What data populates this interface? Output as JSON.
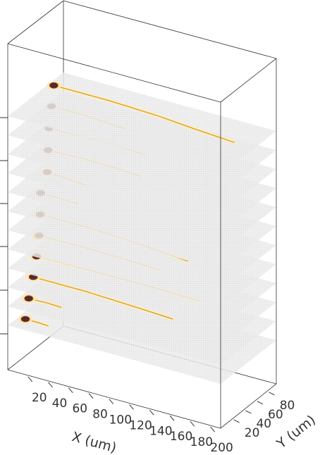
{
  "chart_data": {
    "type": "scatter",
    "projection": "3d",
    "title": "",
    "xlabel": "X (um)",
    "ylabel": "Y (um)",
    "zlabel": "",
    "x_ticks": [
      "20",
      "40",
      "60",
      "80",
      "100",
      "120",
      "140",
      "160",
      "180",
      "200"
    ],
    "y_ticks": [
      "20",
      "40",
      "60",
      "80"
    ],
    "xlim": [
      0,
      210
    ],
    "ylim": [
      0,
      95
    ],
    "layers": 12,
    "colormap": "hot",
    "traces": [
      {
        "layer": 1,
        "blob": [
          5,
          70
        ],
        "tail": [
          [
            5,
            70
          ],
          [
            60,
            70
          ],
          [
            110,
            67
          ],
          [
            150,
            62
          ],
          [
            190,
            58
          ]
        ]
      },
      {
        "layer": 2,
        "blob": [
          5,
          66
        ],
        "tail": [
          [
            5,
            66
          ],
          [
            40,
            66
          ],
          [
            60,
            64
          ],
          [
            80,
            62
          ]
        ]
      },
      {
        "layer": 3,
        "blob": [
          6,
          60
        ],
        "tail": [
          [
            6,
            60
          ],
          [
            40,
            62
          ],
          [
            70,
            62
          ],
          [
            100,
            60
          ]
        ]
      },
      {
        "layer": 4,
        "blob": [
          8,
          55
        ],
        "tail": [
          [
            8,
            55
          ],
          [
            40,
            57
          ],
          [
            70,
            56
          ],
          [
            100,
            54
          ]
        ]
      },
      {
        "layer": 5,
        "blob": [
          10,
          50
        ],
        "tail": [
          [
            10,
            50
          ],
          [
            30,
            48
          ],
          [
            50,
            46
          ]
        ]
      },
      {
        "layer": 6,
        "blob": [
          7,
          44
        ],
        "tail": [
          [
            7,
            44
          ],
          [
            25,
            44
          ],
          [
            45,
            43
          ]
        ]
      },
      {
        "layer": 7,
        "blob": [
          9,
          40
        ],
        "tail": [
          [
            9,
            40
          ],
          [
            60,
            40
          ],
          [
            110,
            36
          ],
          [
            160,
            30
          ]
        ]
      },
      {
        "layer": 8,
        "blob": [
          10,
          36
        ],
        "tail": [
          [
            10,
            36
          ],
          [
            50,
            37
          ],
          [
            90,
            36
          ],
          [
            130,
            34
          ]
        ]
      },
      {
        "layer": 9,
        "blob": [
          10,
          32
        ],
        "tail": [
          [
            10,
            32
          ],
          [
            60,
            33
          ],
          [
            120,
            34
          ],
          [
            170,
            32
          ]
        ]
      },
      {
        "layer": 10,
        "blob": [
          9,
          28
        ],
        "tail": [
          [
            9,
            28
          ],
          [
            60,
            28
          ],
          [
            110,
            25
          ],
          [
            150,
            22
          ]
        ]
      },
      {
        "layer": 11,
        "blob": [
          8,
          22
        ],
        "tail": [
          [
            8,
            22
          ],
          [
            25,
            23
          ],
          [
            40,
            22
          ]
        ]
      },
      {
        "layer": 12,
        "blob": [
          7,
          18
        ],
        "tail": [
          [
            7,
            18
          ],
          [
            20,
            18
          ],
          [
            30,
            17
          ]
        ]
      }
    ]
  }
}
